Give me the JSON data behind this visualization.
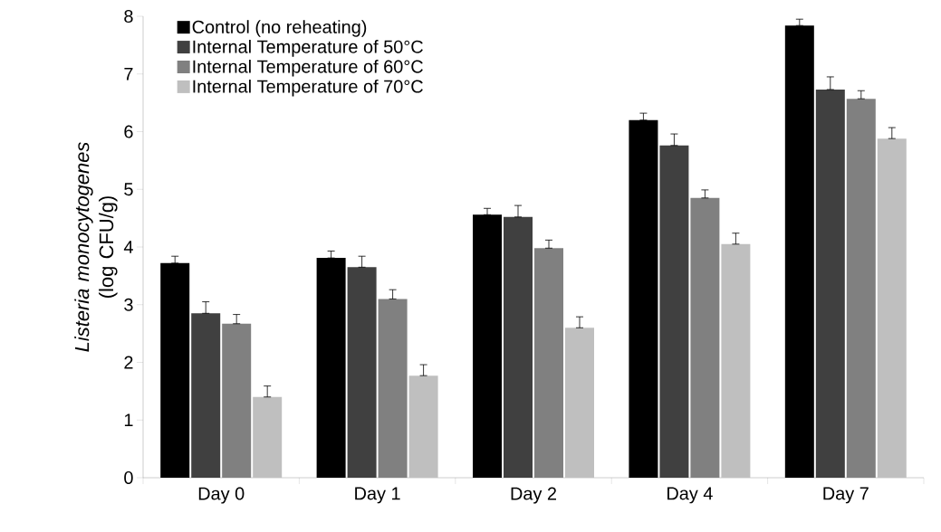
{
  "chart_data": {
    "type": "bar",
    "ylabel": "*Listeria monocytogenes* (log CFU/g)",
    "categories": [
      "Day 0",
      "Day 1",
      "Day 2",
      "Day 4",
      "Day 7"
    ],
    "series": [
      {
        "name": "Control (no reheating)",
        "color": "#000000",
        "values": [
          3.72,
          3.81,
          4.56,
          6.2,
          7.84
        ],
        "errors": [
          [
            3.72,
            3.84
          ],
          [
            3.81,
            3.93
          ],
          [
            4.56,
            4.67
          ],
          [
            6.2,
            6.32
          ],
          [
            7.84,
            7.95
          ]
        ]
      },
      {
        "name": "Internal Temperature of 50°C",
        "color": "#404040",
        "values": [
          2.85,
          3.65,
          4.52,
          5.76,
          6.73
        ],
        "errors": [
          [
            2.85,
            3.05
          ],
          [
            3.65,
            3.84
          ],
          [
            4.52,
            4.72
          ],
          [
            5.76,
            5.96
          ],
          [
            6.73,
            6.95
          ]
        ]
      },
      {
        "name": "Internal Temperature of 60°C",
        "color": "#808080",
        "values": [
          2.67,
          3.1,
          3.98,
          4.85,
          6.57
        ],
        "errors": [
          [
            2.67,
            2.83
          ],
          [
            3.1,
            3.26
          ],
          [
            3.98,
            4.12
          ],
          [
            4.85,
            4.99
          ],
          [
            6.57,
            6.71
          ]
        ]
      },
      {
        "name": "Internal Temperature of 70°C",
        "color": "#bfbfbf",
        "values": [
          1.4,
          1.77,
          2.6,
          4.05,
          5.88
        ],
        "errors": [
          [
            1.4,
            1.59
          ],
          [
            1.77,
            1.96
          ],
          [
            2.6,
            2.79
          ],
          [
            4.05,
            4.24
          ],
          [
            5.88,
            6.07
          ]
        ]
      }
    ],
    "ylim": [
      0,
      8
    ],
    "yticks": [
      0,
      1,
      2,
      3,
      4,
      5,
      6,
      7,
      8
    ],
    "grid": false,
    "legend": "top left"
  }
}
